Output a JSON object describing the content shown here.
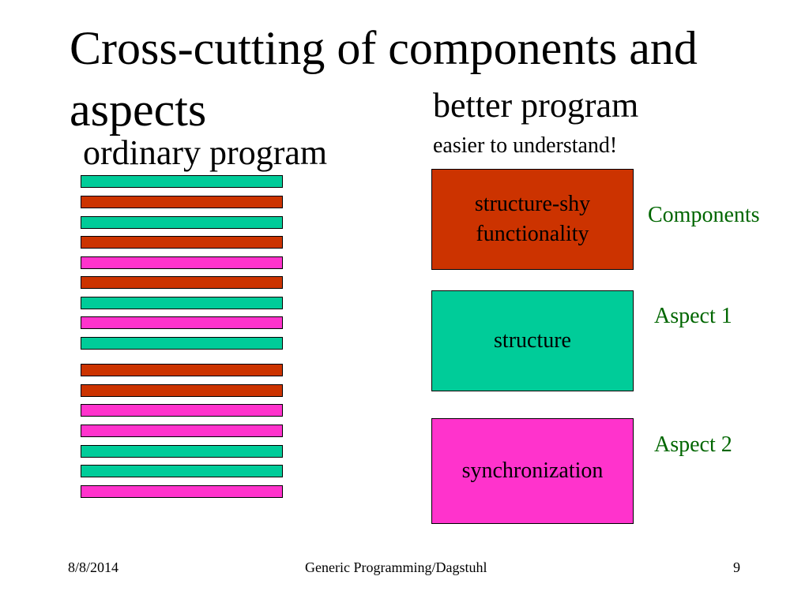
{
  "slide": {
    "title": "Cross-cutting of components and aspects"
  },
  "left_column": {
    "heading": "ordinary program",
    "bar_colors": {
      "teal": "#00cc99",
      "red": "#cc3300",
      "pink": "#ff33cc"
    },
    "bars": [
      "teal",
      "red",
      "teal",
      "red",
      "pink",
      "red",
      "teal",
      "pink",
      "teal",
      "red",
      "red",
      "pink",
      "pink",
      "teal",
      "teal",
      "pink"
    ]
  },
  "right_column": {
    "heading": "better program",
    "subheading": "easier to understand!",
    "boxes": [
      {
        "text": "structure-shy functionality",
        "color": "#cc3300",
        "label": "Components"
      },
      {
        "text": "structure",
        "color": "#00cc99",
        "label": "Aspect 1"
      },
      {
        "text": "synchronization",
        "color": "#ff33cc",
        "label": "Aspect 2"
      }
    ],
    "label_color": "#006600"
  },
  "footer": {
    "date": "8/8/2014",
    "center": "Generic Programming/Dagstuhl",
    "page_number": "9"
  }
}
